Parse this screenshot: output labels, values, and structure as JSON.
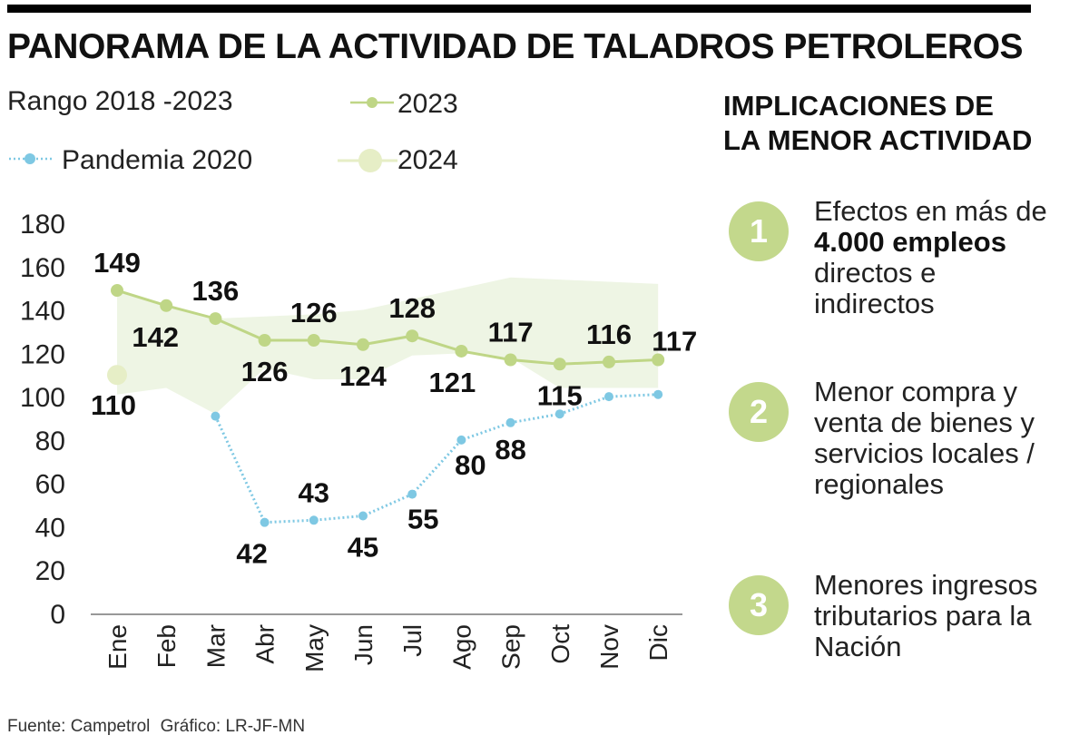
{
  "title": "PANORAMA DE LA ACTIVIDAD DE TALADROS PETROLEROS",
  "legend": {
    "range": "Rango 2018 -2023",
    "s2023": "2023",
    "pandemia": "Pandemia 2020",
    "s2024": "2024"
  },
  "colors": {
    "range_fill": "#eef5e4",
    "line_2023": "#bfd686",
    "marker_2024": "#e6eec6",
    "pandemia": "#7ec8e3",
    "circle": "#c3d88c"
  },
  "side": {
    "title_line1": "IMPLICACIONES DE",
    "title_line2": "LA MENOR ACTIVIDAD",
    "items": [
      {
        "num": "1",
        "text_pre": "Efectos en más de",
        "text_bold": "4.000 empleos",
        "text_post": "directos e indirectos"
      },
      {
        "num": "2",
        "text_pre": "Menor compra y venta de bienes y servicios locales / regionales",
        "text_bold": "",
        "text_post": ""
      },
      {
        "num": "3",
        "text_pre": "Menores ingresos tributarios para la Nación",
        "text_bold": "",
        "text_post": ""
      }
    ]
  },
  "footer": {
    "source": "Fuente: Campetrol",
    "credit": "Gráfico: LR-JF-MN"
  },
  "chart_data": {
    "type": "line",
    "title": "PANORAMA DE LA ACTIVIDAD DE TALADROS PETROLEROS",
    "xlabel": "",
    "ylabel": "",
    "categories": [
      "Ene",
      "Feb",
      "Mar",
      "Abr",
      "May",
      "Jun",
      "Jul",
      "Ago",
      "Sep",
      "Oct",
      "Nov",
      "Dic"
    ],
    "ylim": [
      0,
      180
    ],
    "yticks": [
      0,
      20,
      40,
      60,
      80,
      100,
      120,
      140,
      160,
      180
    ],
    "grid": false,
    "legend_position": "top-left",
    "range_band": {
      "name": "Rango 2018 -2023",
      "upper": [
        149,
        142,
        136,
        137,
        138,
        140,
        145,
        150,
        155,
        154,
        153,
        152
      ],
      "lower": [
        101,
        104,
        92,
        113,
        108,
        108,
        119,
        120,
        118,
        104,
        104,
        104
      ]
    },
    "series": [
      {
        "name": "2023",
        "values": [
          149,
          142,
          136,
          126,
          126,
          124,
          128,
          121,
          117,
          115,
          116,
          117
        ],
        "labels": [
          "149",
          "142",
          "136",
          "126",
          "126",
          "124",
          "128",
          "121",
          "117",
          "115",
          "116",
          "117"
        ]
      },
      {
        "name": "2024",
        "values": [
          110,
          null,
          null,
          null,
          null,
          null,
          null,
          null,
          null,
          null,
          null,
          null
        ],
        "labels": [
          "110"
        ]
      },
      {
        "name": "Pandemia 2020",
        "values": [
          null,
          null,
          91,
          42,
          43,
          45,
          55,
          80,
          88,
          92,
          100,
          101
        ],
        "labels": [
          null,
          null,
          null,
          "42",
          "43",
          "45",
          "55",
          "80",
          "88",
          null,
          null,
          null
        ]
      }
    ]
  }
}
